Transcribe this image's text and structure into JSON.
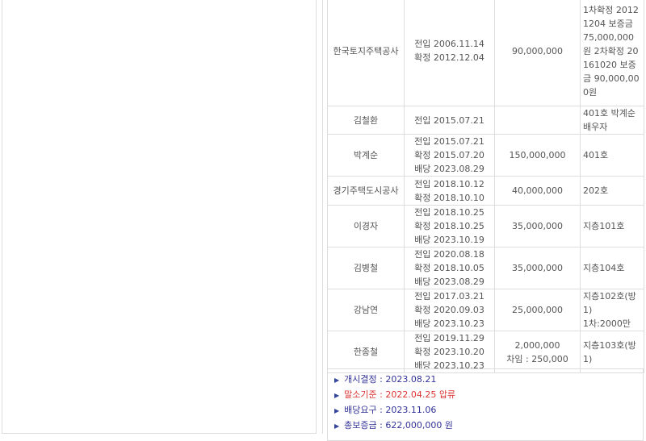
{
  "tenants": [
    {
      "name": "한국토지주택공사",
      "dates": [
        "전입 2006.11.14",
        "확정 2012.12.04"
      ],
      "amount": [
        "90,000,000"
      ],
      "note": [
        "1차확정 20121204 보증금 75,000,000원 2차확정 20161020 보증금 90,000,000원"
      ]
    },
    {
      "name": "김철환",
      "dates": [
        "전입 2015.07.21"
      ],
      "amount": [],
      "note": [
        "401호 박계순배우자"
      ]
    },
    {
      "name": "박계순",
      "dates": [
        "전입 2015.07.21",
        "확정 2015.07.20",
        "배당 2023.08.29"
      ],
      "amount": [
        "150,000,000"
      ],
      "note": [
        "401호"
      ]
    },
    {
      "name": "경기주택도시공사",
      "dates": [
        "전입 2018.10.12",
        "확정 2018.10.10"
      ],
      "amount": [
        "40,000,000"
      ],
      "note": [
        "202호"
      ]
    },
    {
      "name": "이경자",
      "dates": [
        "전입 2018.10.25",
        "확정 2018.10.25",
        "배당 2023.10.19"
      ],
      "amount": [
        "35,000,000"
      ],
      "note": [
        "지층101호"
      ]
    },
    {
      "name": "김병철",
      "dates": [
        "전입 2020.08.18",
        "확정 2018.10.05",
        "배당 2023.08.29"
      ],
      "amount": [
        "35,000,000"
      ],
      "note": [
        "지층104호"
      ]
    },
    {
      "name": "강남연",
      "dates": [
        "전입 2017.03.21",
        "확정 2020.09.03",
        "배당 2023.10.23"
      ],
      "amount": [
        "25,000,000"
      ],
      "note": [
        "지층102호(방1)",
        "1차:2000만"
      ]
    },
    {
      "name": "한종철",
      "dates": [
        "전입 2019.11.29",
        "확정 2023.10.20",
        "배당 2023.10.23"
      ],
      "amount": [
        "2,000,000",
        "차임 : 250,000"
      ],
      "note": [
        "지층103호(방1)"
      ]
    }
  ],
  "summary": [
    {
      "text": "개시결정 : 2023.08.21",
      "color": "#333399"
    },
    {
      "text": "말소기준 : 2022.04.25 압류",
      "color": "#dd3333"
    },
    {
      "text": "배당요구 : 2023.11.06",
      "color": "#333399"
    },
    {
      "text": "총보증금 : 622,000,000 원",
      "color": "#333399"
    }
  ]
}
